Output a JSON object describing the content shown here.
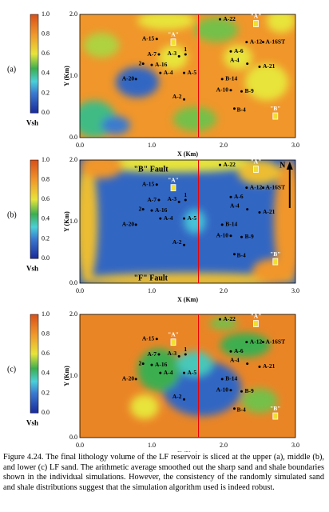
{
  "panels": [
    {
      "label": "(a)"
    },
    {
      "label": "(b)",
      "annotations": [
        "\"B\" Fault",
        "\"F\" Fault",
        "N"
      ]
    },
    {
      "label": "(c)"
    }
  ],
  "colorbar": {
    "ticks": [
      "0.0",
      "0.2",
      "0.4",
      "0.6",
      "0.8",
      "1.0"
    ],
    "label": "Vsh"
  },
  "axes": {
    "x_label": "X (Km)",
    "y_label": "Y (Km)",
    "x_ticks": [
      "0.0",
      "1.0",
      "2.0",
      "3.0"
    ],
    "y_ticks": [
      "0.0",
      "1.0",
      "2.0"
    ]
  },
  "wells": [
    "A-22",
    "\"A\"",
    "A-16ST",
    "A-15",
    "\"A\"",
    "A-12",
    "A-7",
    "A-3",
    "1",
    "A-6",
    "2",
    "A-16",
    "A-4",
    "A-5",
    "A-4",
    "A-21",
    "A-20",
    "B-14",
    "A-10",
    "B-9",
    "A-2",
    "B-4",
    "\"B\""
  ],
  "caption": "Figure 4.24.  The final lithology volume of the LF reservoir is sliced at the upper (a), middle (b), and lower (c) LF sand.  The arithmetic average smoothed out the sharp sand and shale boundaries shown in the individual simulations.  However, the consistency of the randomly simulated sand and shale distributions suggest that the simulation algorithm used is indeed robust."
}
